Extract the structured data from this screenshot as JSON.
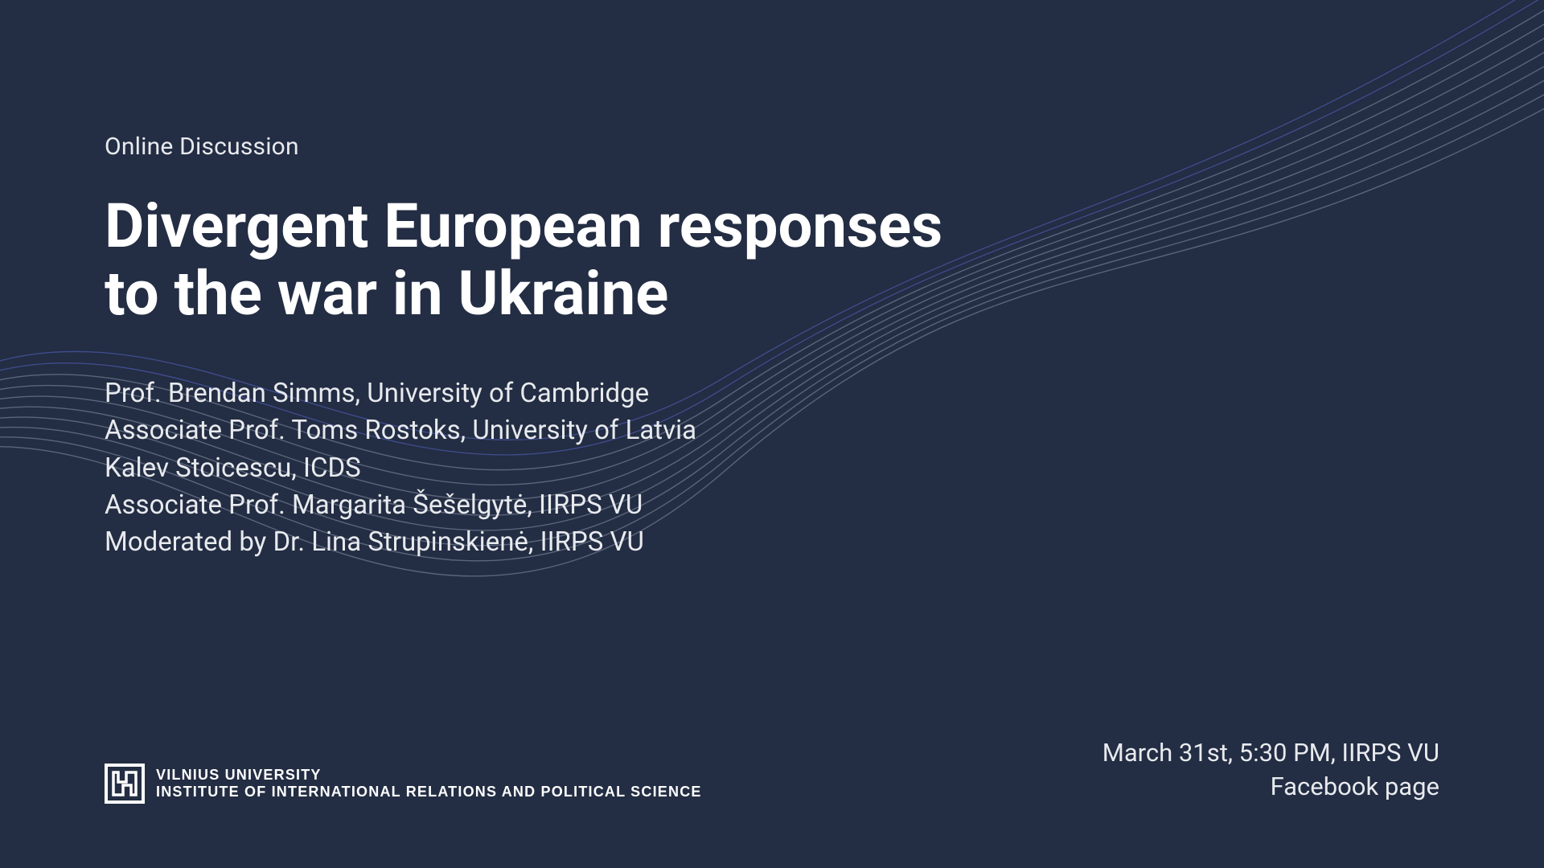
{
  "colors": {
    "background": "#232d43",
    "text_primary": "#ffffff",
    "text_secondary": "#e8eaee",
    "wave_stroke": "#8a93a7",
    "wave_stroke_left": "#5864c4"
  },
  "eyebrow": "Online Discussion",
  "title_line1": "Divergent European responses",
  "title_line2": "to the war in Ukraine",
  "speakers": [
    "Prof. Brendan Simms, University of Cambridge",
    "Associate Prof. Toms Rostoks, University of Latvia",
    "Kalev Stoicescu, ICDS",
    "Associate Prof. Margarita Šešelgytė, IIRPS VU",
    "Moderated by Dr. Lina Strupinskienė, IIRPS VU"
  ],
  "organization": {
    "line1": "Vilnius University",
    "line2": "Institute of International Relations and Political Science"
  },
  "event": {
    "date": "March 31st, 5:30 PM, IIRPS VU",
    "location": "Facebook page"
  },
  "typography": {
    "eyebrow_fontsize": 30,
    "title_fontsize": 76,
    "title_weight": 700,
    "speaker_fontsize": 33,
    "org_fontsize": 18,
    "meta_fontsize": 31
  },
  "waves": {
    "count": 10,
    "stroke_width": 1.4,
    "opacity": 0.55
  }
}
